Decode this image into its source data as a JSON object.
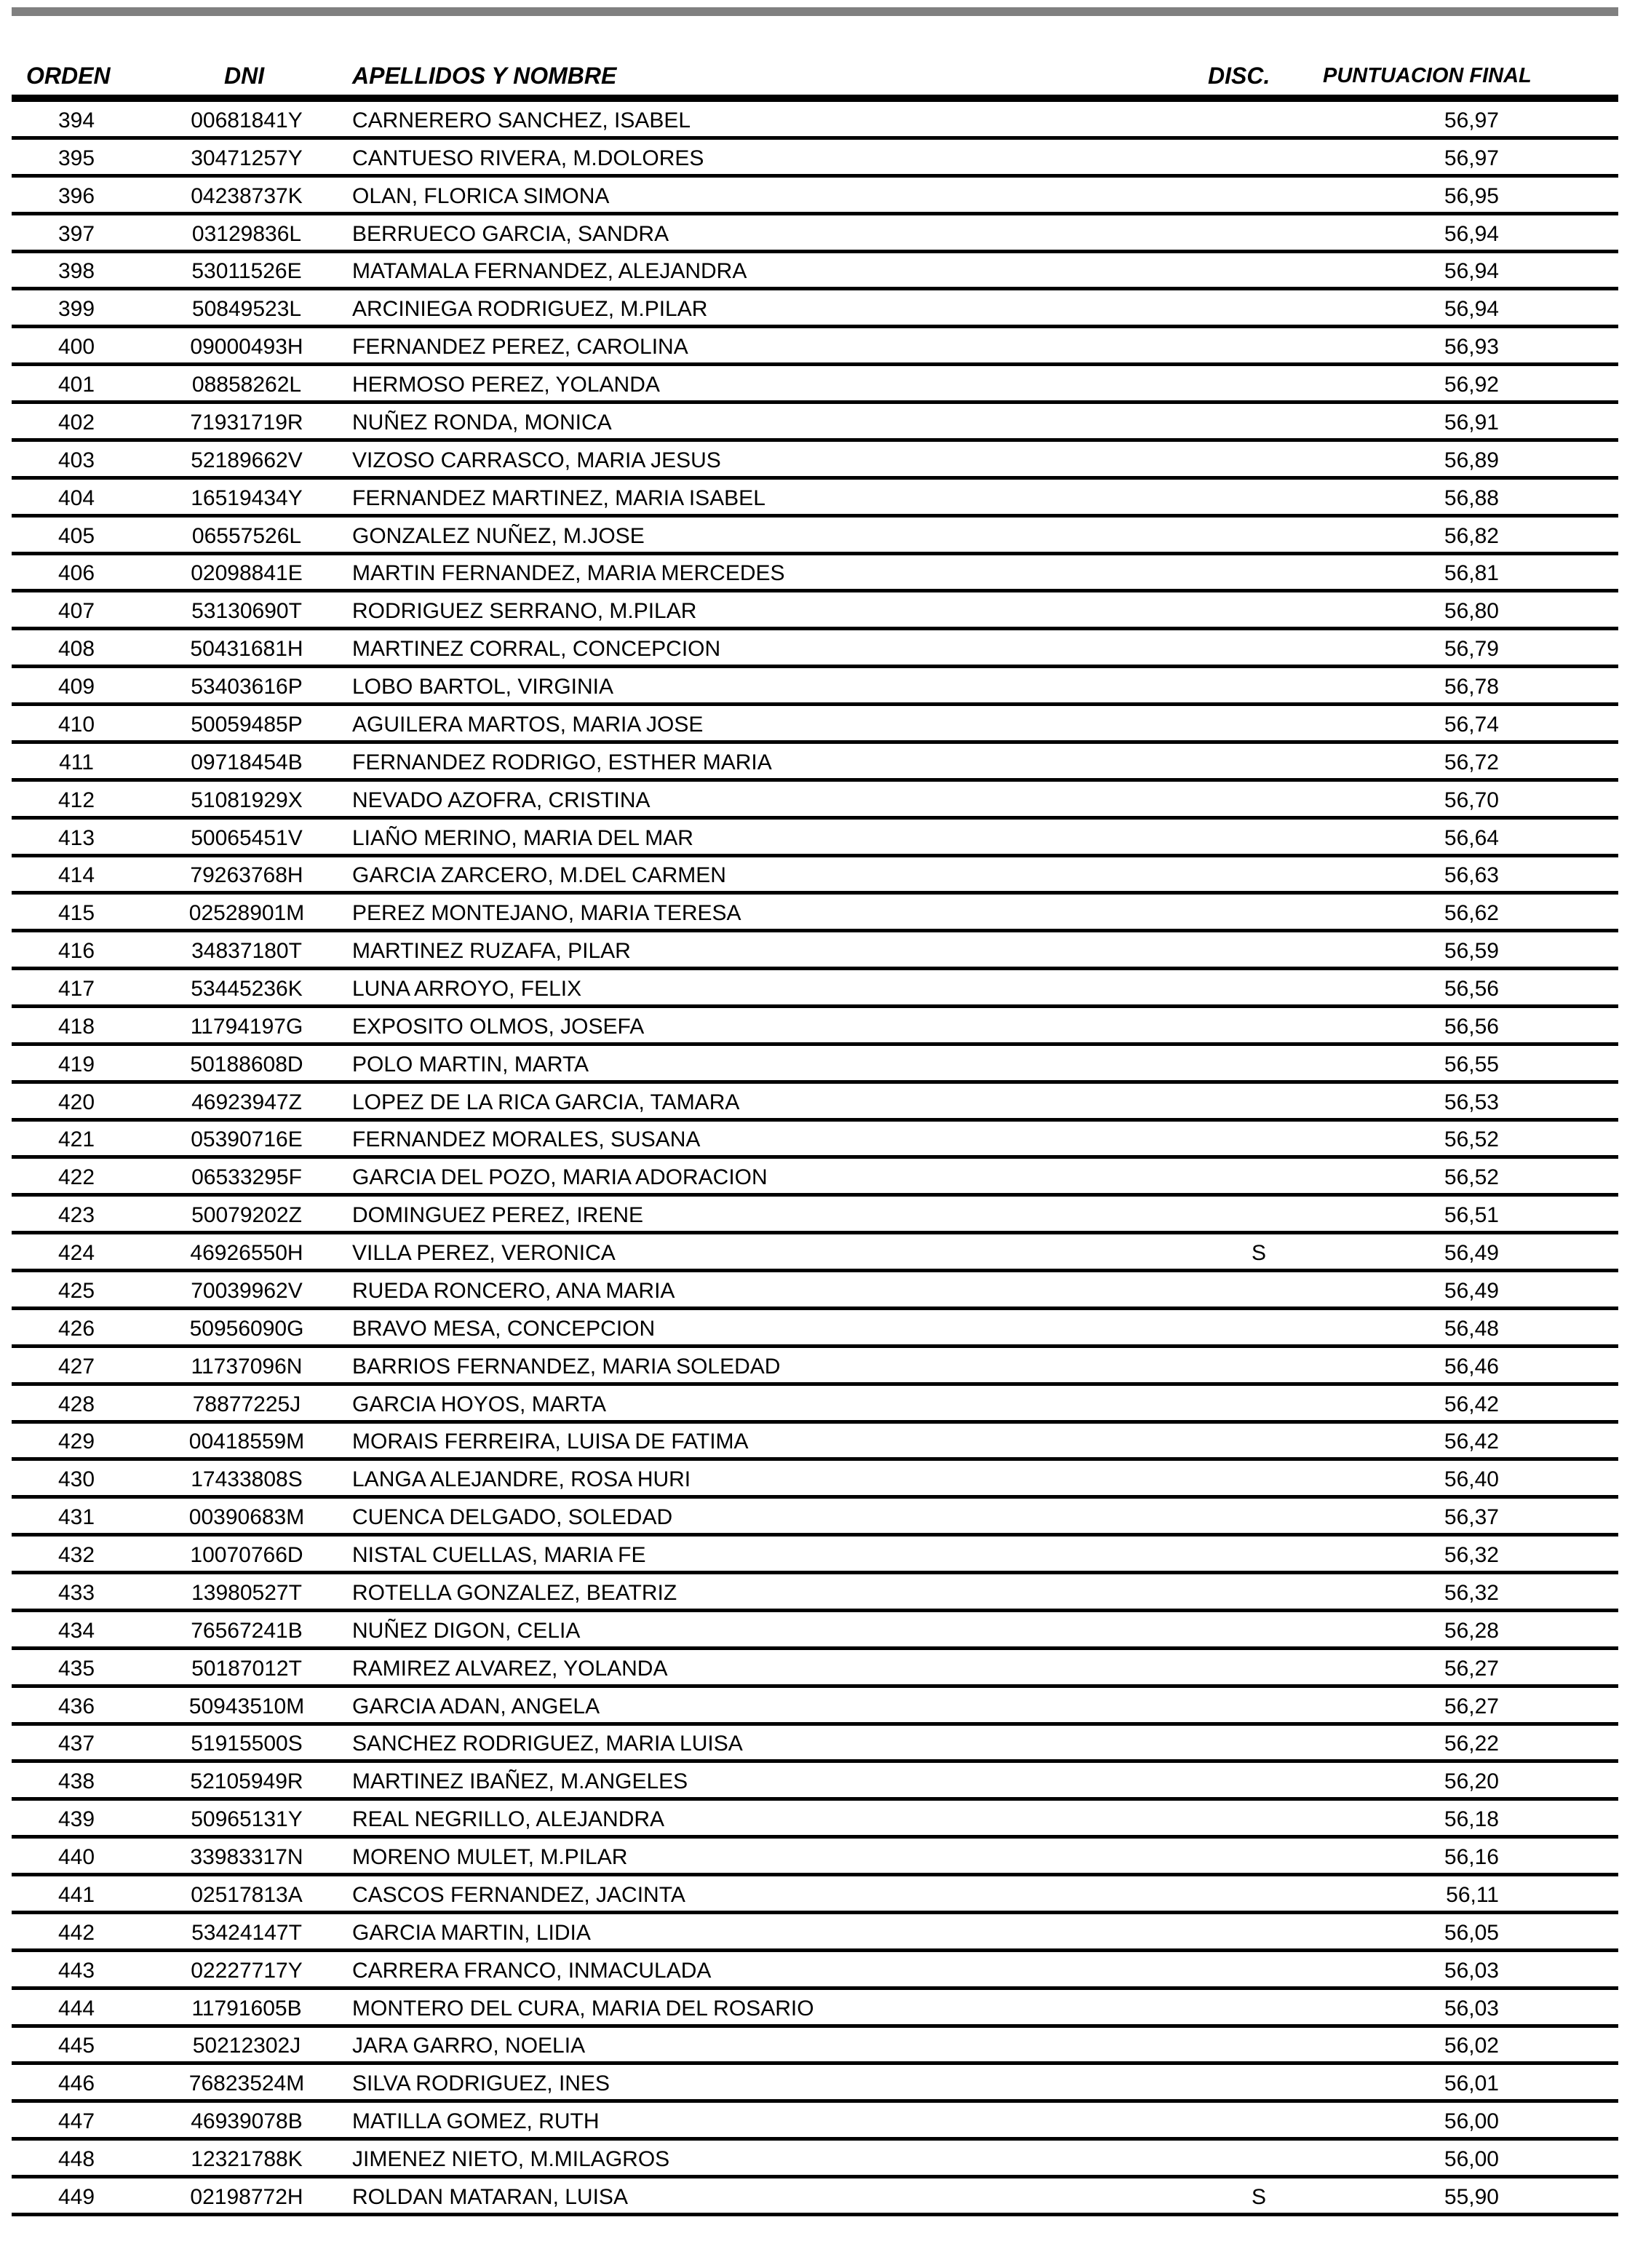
{
  "header": {
    "orden": "ORDEN",
    "dni": "DNI",
    "nombre": "APELLIDOS Y NOMBRE",
    "disc": "DISC.",
    "puntuacion": "PUNTUACION FINAL"
  },
  "rows": [
    [
      "394",
      "00681841Y",
      "CARNERERO SANCHEZ, ISABEL",
      "",
      "56,97"
    ],
    [
      "395",
      "30471257Y",
      "CANTUESO RIVERA, M.DOLORES",
      "",
      "56,97"
    ],
    [
      "396",
      "04238737K",
      "OLAN, FLORICA SIMONA",
      "",
      "56,95"
    ],
    [
      "397",
      "03129836L",
      "BERRUECO GARCIA, SANDRA",
      "",
      "56,94"
    ],
    [
      "398",
      "53011526E",
      "MATAMALA FERNANDEZ, ALEJANDRA",
      "",
      "56,94"
    ],
    [
      "399",
      "50849523L",
      "ARCINIEGA RODRIGUEZ, M.PILAR",
      "",
      "56,94"
    ],
    [
      "400",
      "09000493H",
      "FERNANDEZ PEREZ, CAROLINA",
      "",
      "56,93"
    ],
    [
      "401",
      "08858262L",
      "HERMOSO PEREZ, YOLANDA",
      "",
      "56,92"
    ],
    [
      "402",
      "71931719R",
      "NUÑEZ RONDA, MONICA",
      "",
      "56,91"
    ],
    [
      "403",
      "52189662V",
      "VIZOSO CARRASCO, MARIA JESUS",
      "",
      "56,89"
    ],
    [
      "404",
      "16519434Y",
      "FERNANDEZ MARTINEZ, MARIA ISABEL",
      "",
      "56,88"
    ],
    [
      "405",
      "06557526L",
      "GONZALEZ NUÑEZ, M.JOSE",
      "",
      "56,82"
    ],
    [
      "406",
      "02098841E",
      "MARTIN FERNANDEZ, MARIA MERCEDES",
      "",
      "56,81"
    ],
    [
      "407",
      "53130690T",
      "RODRIGUEZ SERRANO, M.PILAR",
      "",
      "56,80"
    ],
    [
      "408",
      "50431681H",
      "MARTINEZ CORRAL, CONCEPCION",
      "",
      "56,79"
    ],
    [
      "409",
      "53403616P",
      "LOBO BARTOL, VIRGINIA",
      "",
      "56,78"
    ],
    [
      "410",
      "50059485P",
      "AGUILERA MARTOS, MARIA JOSE",
      "",
      "56,74"
    ],
    [
      "411",
      "09718454B",
      "FERNANDEZ RODRIGO, ESTHER MARIA",
      "",
      "56,72"
    ],
    [
      "412",
      "51081929X",
      "NEVADO AZOFRA, CRISTINA",
      "",
      "56,70"
    ],
    [
      "413",
      "50065451V",
      "LIAÑO MERINO, MARIA DEL MAR",
      "",
      "56,64"
    ],
    [
      "414",
      "79263768H",
      "GARCIA ZARCERO, M.DEL CARMEN",
      "",
      "56,63"
    ],
    [
      "415",
      "02528901M",
      "PEREZ MONTEJANO, MARIA TERESA",
      "",
      "56,62"
    ],
    [
      "416",
      "34837180T",
      "MARTINEZ RUZAFA, PILAR",
      "",
      "56,59"
    ],
    [
      "417",
      "53445236K",
      "LUNA ARROYO, FELIX",
      "",
      "56,56"
    ],
    [
      "418",
      "11794197G",
      "EXPOSITO OLMOS, JOSEFA",
      "",
      "56,56"
    ],
    [
      "419",
      "50188608D",
      "POLO MARTIN, MARTA",
      "",
      "56,55"
    ],
    [
      "420",
      "46923947Z",
      "LOPEZ DE LA RICA GARCIA, TAMARA",
      "",
      "56,53"
    ],
    [
      "421",
      "05390716E",
      "FERNANDEZ MORALES, SUSANA",
      "",
      "56,52"
    ],
    [
      "422",
      "06533295F",
      "GARCIA DEL POZO, MARIA ADORACION",
      "",
      "56,52"
    ],
    [
      "423",
      "50079202Z",
      "DOMINGUEZ PEREZ, IRENE",
      "",
      "56,51"
    ],
    [
      "424",
      "46926550H",
      "VILLA PEREZ, VERONICA",
      "S",
      "56,49"
    ],
    [
      "425",
      "70039962V",
      "RUEDA RONCERO, ANA MARIA",
      "",
      "56,49"
    ],
    [
      "426",
      "50956090G",
      "BRAVO MESA, CONCEPCION",
      "",
      "56,48"
    ],
    [
      "427",
      "11737096N",
      "BARRIOS FERNANDEZ, MARIA SOLEDAD",
      "",
      "56,46"
    ],
    [
      "428",
      "78877225J",
      "GARCIA HOYOS, MARTA",
      "",
      "56,42"
    ],
    [
      "429",
      "00418559M",
      "MORAIS FERREIRA, LUISA DE FATIMA",
      "",
      "56,42"
    ],
    [
      "430",
      "17433808S",
      "LANGA ALEJANDRE, ROSA HURI",
      "",
      "56,40"
    ],
    [
      "431",
      "00390683M",
      "CUENCA DELGADO, SOLEDAD",
      "",
      "56,37"
    ],
    [
      "432",
      "10070766D",
      "NISTAL CUELLAS, MARIA FE",
      "",
      "56,32"
    ],
    [
      "433",
      "13980527T",
      "ROTELLA GONZALEZ, BEATRIZ",
      "",
      "56,32"
    ],
    [
      "434",
      "76567241B",
      "NUÑEZ DIGON, CELIA",
      "",
      "56,28"
    ],
    [
      "435",
      "50187012T",
      "RAMIREZ ALVAREZ, YOLANDA",
      "",
      "56,27"
    ],
    [
      "436",
      "50943510M",
      "GARCIA ADAN, ANGELA",
      "",
      "56,27"
    ],
    [
      "437",
      "51915500S",
      "SANCHEZ RODRIGUEZ, MARIA LUISA",
      "",
      "56,22"
    ],
    [
      "438",
      "52105949R",
      "MARTINEZ IBAÑEZ, M.ANGELES",
      "",
      "56,20"
    ],
    [
      "439",
      "50965131Y",
      "REAL NEGRILLO, ALEJANDRA",
      "",
      "56,18"
    ],
    [
      "440",
      "33983317N",
      "MORENO MULET, M.PILAR",
      "",
      "56,16"
    ],
    [
      "441",
      "02517813A",
      "CASCOS FERNANDEZ, JACINTA",
      "",
      "56,11"
    ],
    [
      "442",
      "53424147T",
      "GARCIA MARTIN, LIDIA",
      "",
      "56,05"
    ],
    [
      "443",
      "02227717Y",
      "CARRERA FRANCO, INMACULADA",
      "",
      "56,03"
    ],
    [
      "444",
      "11791605B",
      "MONTERO DEL CURA, MARIA DEL ROSARIO",
      "",
      "56,03"
    ],
    [
      "445",
      "50212302J",
      "JARA GARRO, NOELIA",
      "",
      "56,02"
    ],
    [
      "446",
      "76823524M",
      "SILVA RODRIGUEZ, INES",
      "",
      "56,01"
    ],
    [
      "447",
      "46939078B",
      "MATILLA GOMEZ, RUTH",
      "",
      "56,00"
    ],
    [
      "448",
      "12321788K",
      "JIMENEZ NIETO, M.MILAGROS",
      "",
      "56,00"
    ],
    [
      "449",
      "02198772H",
      "ROLDAN MATARAN, LUISA",
      "S",
      "55,90"
    ]
  ]
}
